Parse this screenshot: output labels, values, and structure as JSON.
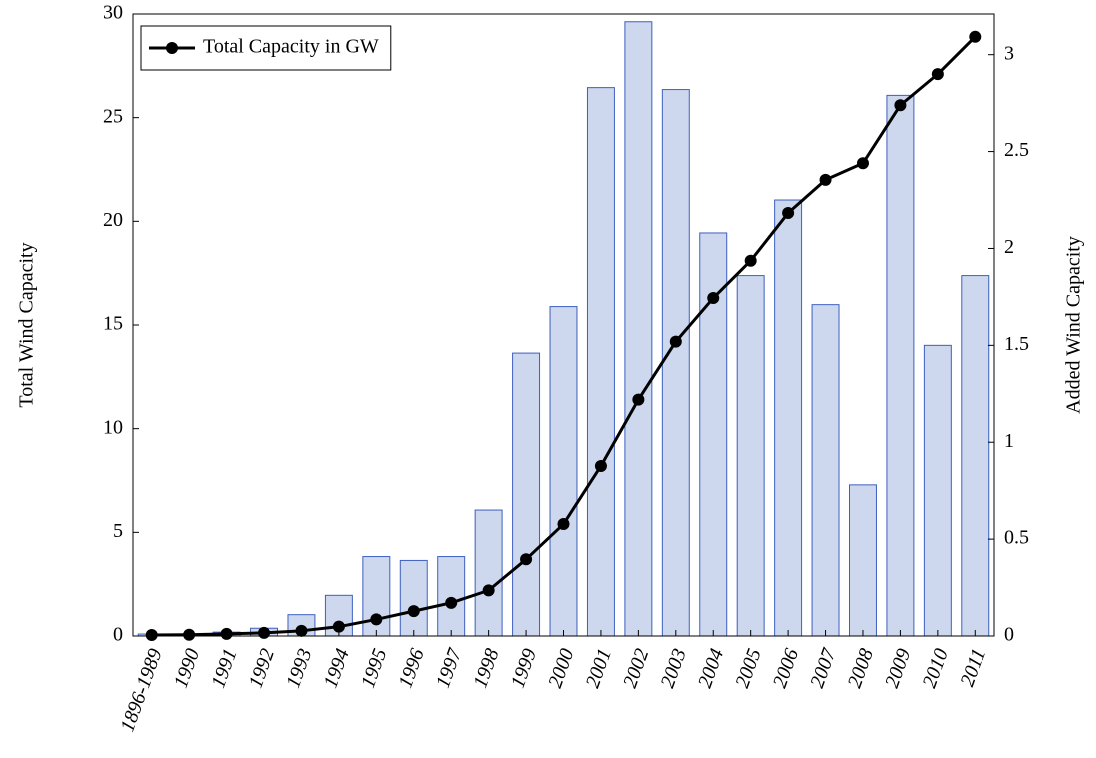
{
  "chart_data": {
    "type": "bar-line",
    "categories": [
      "1896-1989",
      "1990",
      "1991",
      "1992",
      "1993",
      "1994",
      "1995",
      "1996",
      "1997",
      "1998",
      "1999",
      "2000",
      "2001",
      "2002",
      "2003",
      "2004",
      "2005",
      "2006",
      "2007",
      "2008",
      "2009",
      "2010",
      "2011"
    ],
    "series": [
      {
        "type": "bar",
        "axis": "y2",
        "color": "#cdd8ee",
        "edge": "#3d5fbf",
        "values": [
          0.01,
          0.01,
          0.02,
          0.04,
          0.11,
          0.21,
          0.41,
          0.39,
          0.41,
          0.65,
          1.46,
          1.7,
          2.83,
          3.17,
          2.82,
          2.08,
          1.86,
          2.25,
          1.71,
          0.78,
          2.79,
          1.5,
          1.86
        ]
      },
      {
        "type": "line",
        "name": "Total Capacity in GW",
        "color": "#000000",
        "values": [
          0.05,
          0.06,
          0.1,
          0.15,
          0.25,
          0.45,
          0.8,
          1.2,
          1.6,
          2.2,
          3.7,
          5.4,
          8.2,
          11.4,
          14.2,
          16.3,
          18.1,
          20.4,
          22.0,
          22.8,
          25.6,
          27.1,
          28.9
        ]
      }
    ],
    "ylabel": "Total Wind Capacity",
    "y2label": "Added Wind Capacity",
    "ylim": [
      0,
      30
    ],
    "yticks": [
      0,
      5,
      10,
      15,
      20,
      25,
      30
    ],
    "y2lim": [
      0,
      3.21
    ],
    "y2ticks": [
      0,
      0.5,
      1,
      1.5,
      2,
      2.5,
      3
    ],
    "legend": "top-left"
  }
}
